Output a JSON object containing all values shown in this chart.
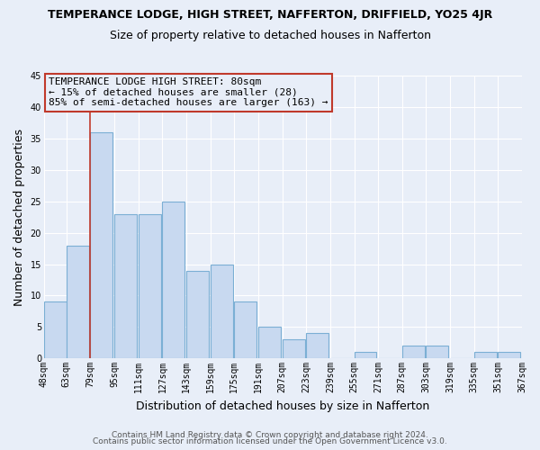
{
  "title": "TEMPERANCE LODGE, HIGH STREET, NAFFERTON, DRIFFIELD, YO25 4JR",
  "subtitle": "Size of property relative to detached houses in Nafferton",
  "xlabel": "Distribution of detached houses by size in Nafferton",
  "ylabel": "Number of detached properties",
  "bins": [
    48,
    63,
    79,
    95,
    111,
    127,
    143,
    159,
    175,
    191,
    207,
    223,
    239,
    255,
    271,
    287,
    303,
    319,
    335,
    351,
    367
  ],
  "counts": [
    9,
    18,
    36,
    23,
    23,
    25,
    14,
    15,
    9,
    5,
    3,
    4,
    0,
    1,
    0,
    2,
    2,
    0,
    1,
    1
  ],
  "bar_color": "#c8d9f0",
  "bar_edge_color": "#7bafd4",
  "vline_x": 79,
  "vline_color": "#c0392b",
  "annotation_title": "TEMPERANCE LODGE HIGH STREET: 80sqm",
  "annotation_line2": "← 15% of detached houses are smaller (28)",
  "annotation_line3": "85% of semi-detached houses are larger (163) →",
  "annotation_box_color": "#c0392b",
  "ylim": [
    0,
    45
  ],
  "yticks": [
    0,
    5,
    10,
    15,
    20,
    25,
    30,
    35,
    40,
    45
  ],
  "tick_labels": [
    "48sqm",
    "63sqm",
    "79sqm",
    "95sqm",
    "111sqm",
    "127sqm",
    "143sqm",
    "159sqm",
    "175sqm",
    "191sqm",
    "207sqm",
    "223sqm",
    "239sqm",
    "255sqm",
    "271sqm",
    "287sqm",
    "303sqm",
    "319sqm",
    "335sqm",
    "351sqm",
    "367sqm"
  ],
  "footer1": "Contains HM Land Registry data © Crown copyright and database right 2024.",
  "footer2": "Contains public sector information licensed under the Open Government Licence v3.0.",
  "bg_color": "#e8eef8",
  "grid_color": "#ffffff",
  "title_fontsize": 9,
  "subtitle_fontsize": 9,
  "axis_label_fontsize": 9,
  "tick_fontsize": 7,
  "annotation_fontsize": 8,
  "footer_fontsize": 6.5
}
